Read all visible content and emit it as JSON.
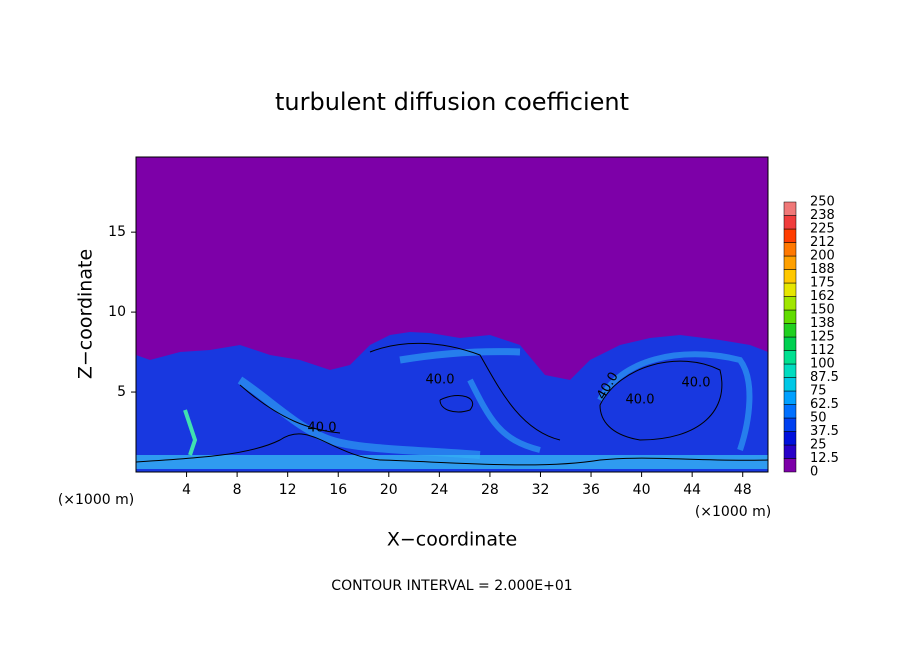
{
  "chart_data": {
    "type": "contour",
    "title": "turbulent diffusion coefficient",
    "xlabel": "X−coordinate",
    "ylabel": "Z−coordinate",
    "xunits": [
      "(×1000 m)",
      "(×1000 m)"
    ],
    "footer": "CONTOUR INTERVAL = 2.000E+01",
    "contour_labels": [
      "40.0",
      "40.0",
      "40.0",
      "40.0",
      "40.0"
    ],
    "xlim": [
      0,
      50
    ],
    "xticks": [
      4,
      8,
      12,
      16,
      20,
      24,
      28,
      32,
      36,
      40,
      44,
      48
    ],
    "ylim": [
      0,
      19.7
    ],
    "yticks": [
      5,
      10,
      15
    ],
    "background": "#7d00a8",
    "colorbar": {
      "levels": [
        0,
        12.5,
        25,
        37.5,
        50,
        62.5,
        75,
        87.5,
        100,
        112,
        125,
        138,
        150,
        162,
        175,
        188,
        200,
        212,
        225,
        238,
        250
      ],
      "colors": [
        "#7d00a8",
        "#2800c8",
        "#0010dc",
        "#0040f0",
        "#0070ff",
        "#00a0ff",
        "#00c8e6",
        "#00dcc0",
        "#00e090",
        "#00d050",
        "#20d020",
        "#60dc00",
        "#a0e600",
        "#e6e600",
        "#ffc800",
        "#ffa000",
        "#ff7800",
        "#ff3c00",
        "#f03c3c",
        "#f07878"
      ]
    }
  }
}
